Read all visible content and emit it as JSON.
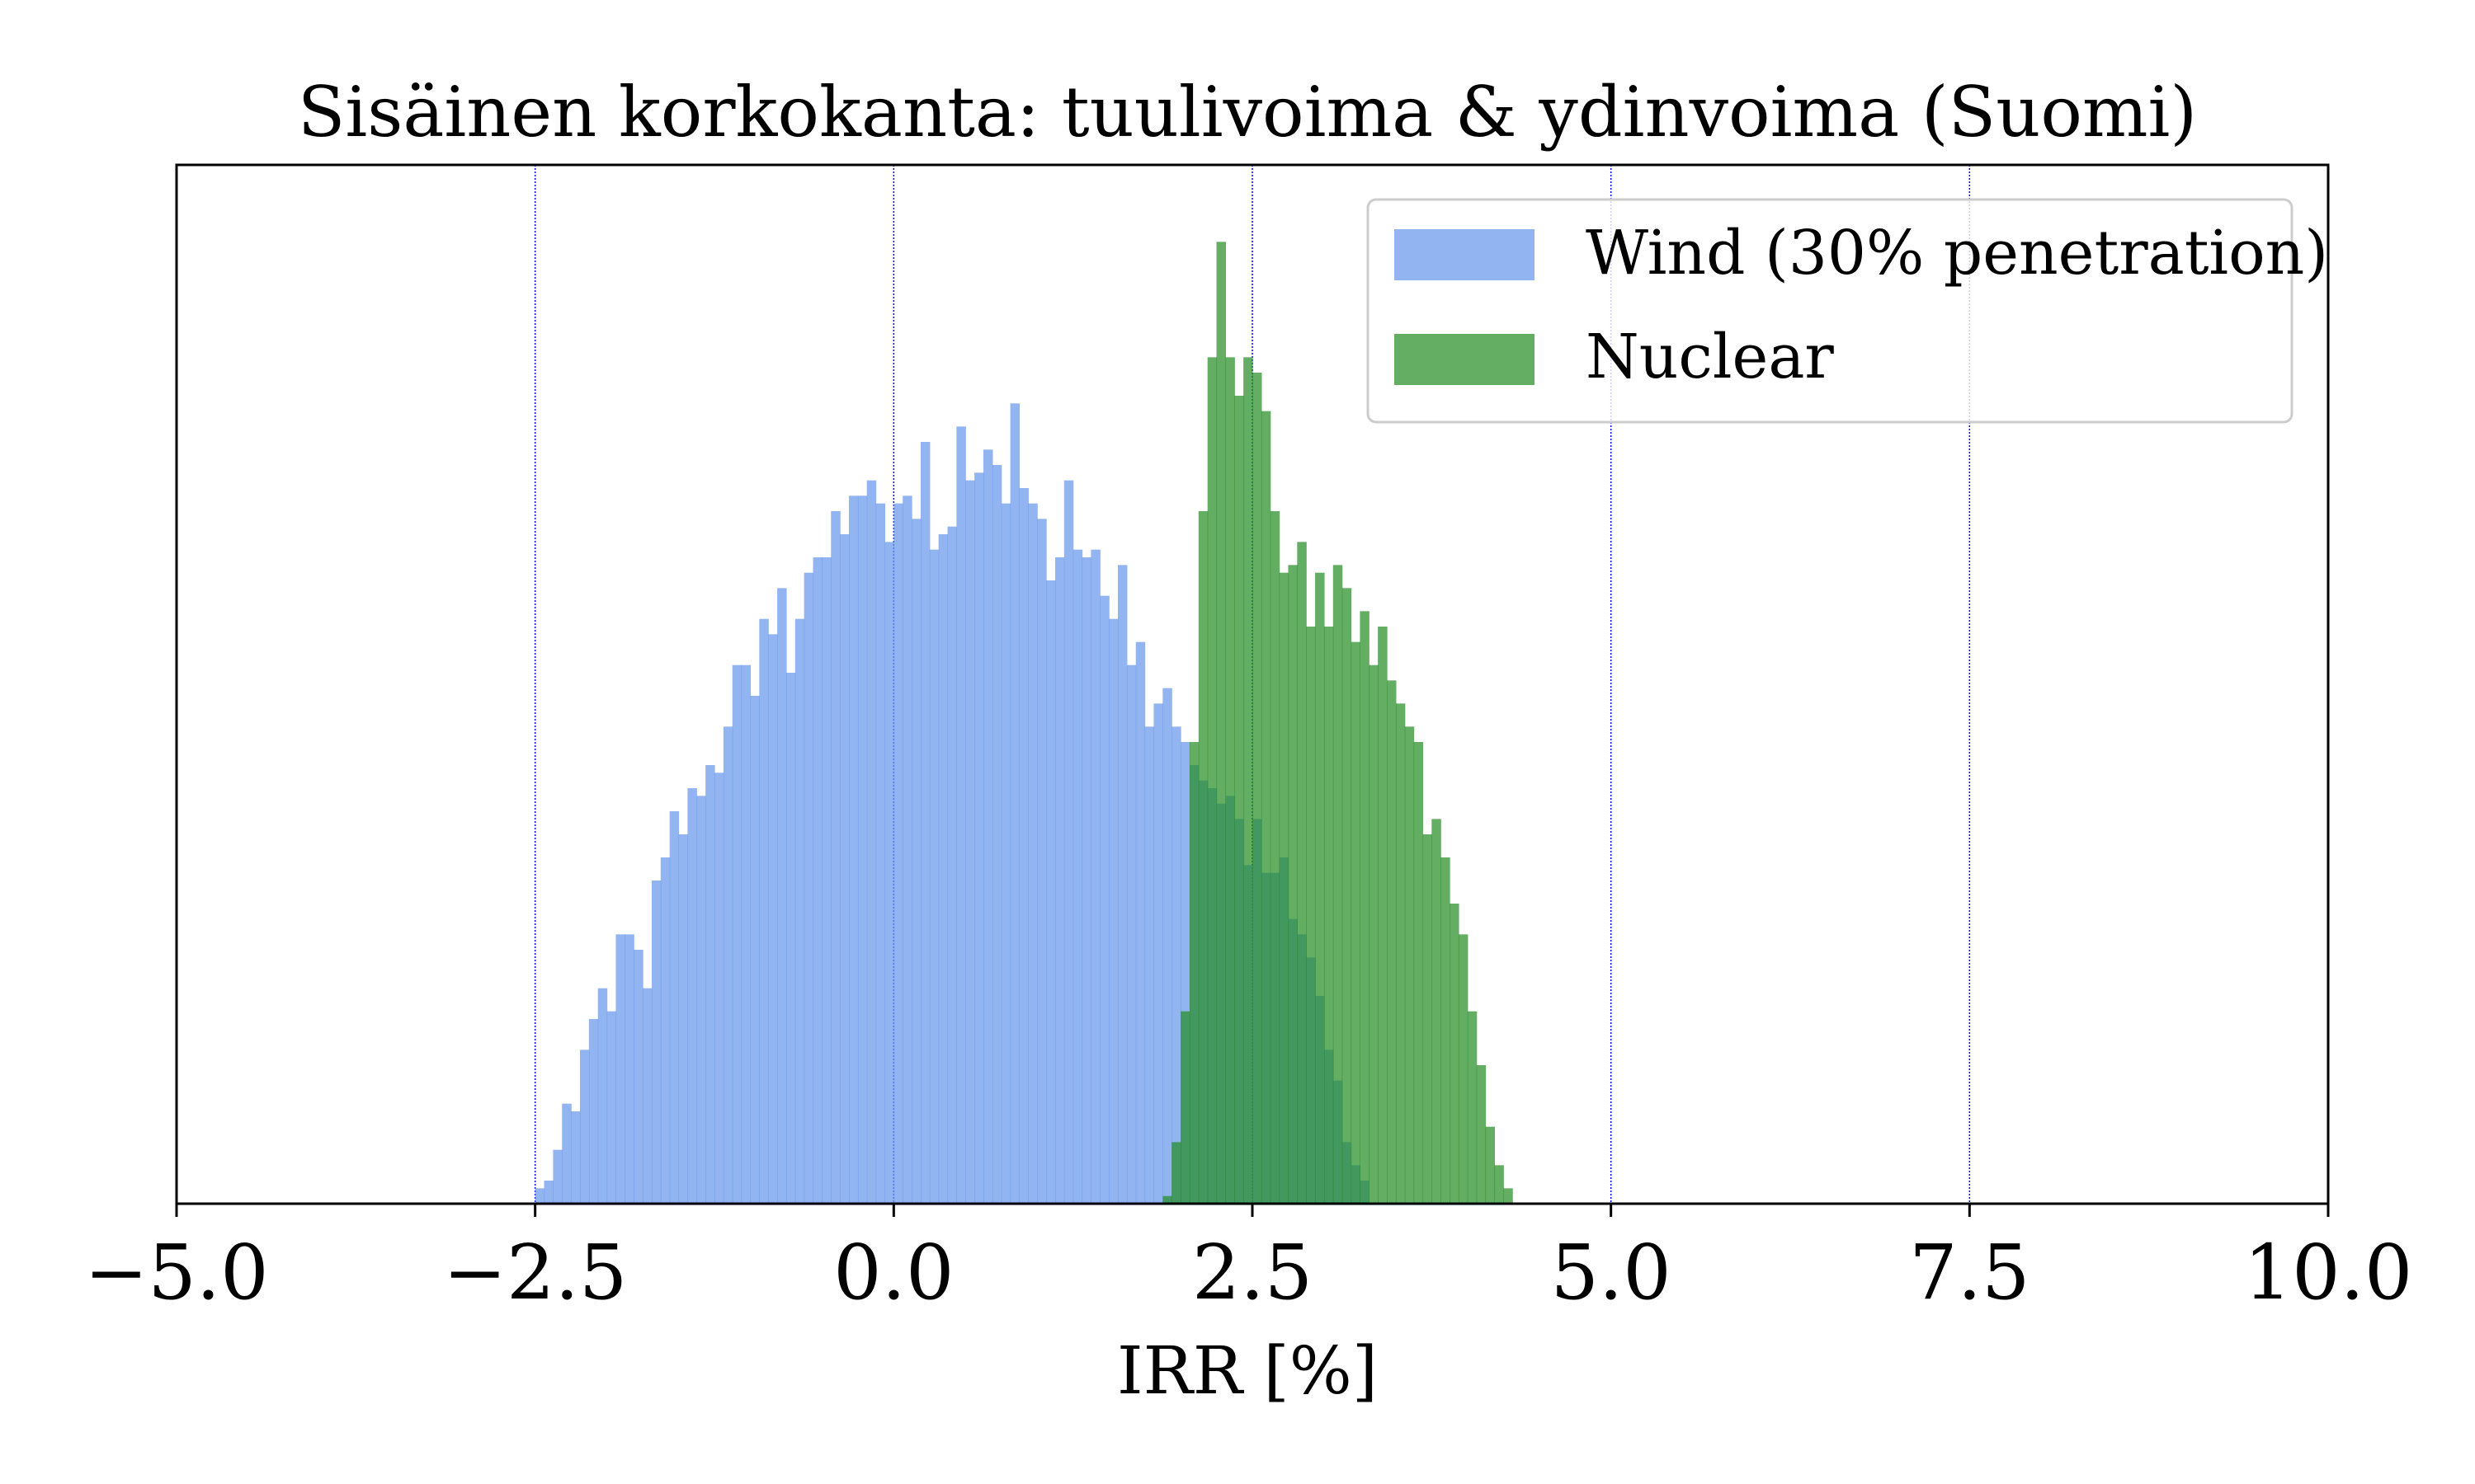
{
  "chart_data": {
    "type": "bar",
    "title": "Sisäinen korkokanta: tuulivoima & ydinvoima (Suomi)",
    "xlabel": "IRR [%]",
    "ylabel": "",
    "xlim": [
      -5.0,
      10.0
    ],
    "ylim": [
      0,
      135
    ],
    "xticks": [
      -5.0,
      -2.5,
      0.0,
      2.5,
      5.0,
      7.5,
      10.0
    ],
    "xtick_labels": [
      "−5.0",
      "−2.5",
      "0.0",
      "2.5",
      "5.0",
      "7.5",
      "10.0"
    ],
    "yaxis_visible": false,
    "grid": "vertical dotted blue lines at x ticks",
    "legend_position": "upper right",
    "bin_width": 0.0625,
    "series": [
      {
        "name": "Wind (30% penetration)",
        "color": "#6495ed",
        "alpha": 0.7,
        "bin_start": -2.5,
        "values": [
          2,
          3,
          7,
          13,
          12,
          20,
          24,
          28,
          25,
          35,
          35,
          33,
          28,
          42,
          45,
          51,
          48,
          54,
          53,
          57,
          56,
          62,
          70,
          70,
          66,
          76,
          74,
          80,
          69,
          76,
          82,
          84,
          84,
          90,
          87,
          92,
          92,
          94,
          91,
          86,
          91,
          92,
          89,
          99,
          85,
          87,
          88,
          101,
          94,
          95,
          98,
          96,
          91,
          104,
          93,
          91,
          89,
          81,
          84,
          94,
          85,
          84,
          85,
          79,
          76,
          83,
          70,
          73,
          62,
          65,
          67,
          62,
          60,
          57,
          55,
          54,
          52,
          53,
          50,
          44,
          50,
          43,
          43,
          45,
          37,
          35,
          32,
          27,
          20,
          16,
          8,
          5,
          3
        ]
      },
      {
        "name": "Nuclear",
        "color": "#228b22",
        "alpha": 0.7,
        "bin_start": 1.875,
        "values": [
          1,
          8,
          25,
          60,
          90,
          110,
          125,
          110,
          105,
          110,
          108,
          103,
          90,
          82,
          83,
          86,
          75,
          82,
          75,
          83,
          80,
          73,
          77,
          70,
          75,
          68,
          65,
          62,
          60,
          48,
          50,
          45,
          39,
          35,
          25,
          18,
          10,
          5,
          2
        ]
      }
    ]
  }
}
